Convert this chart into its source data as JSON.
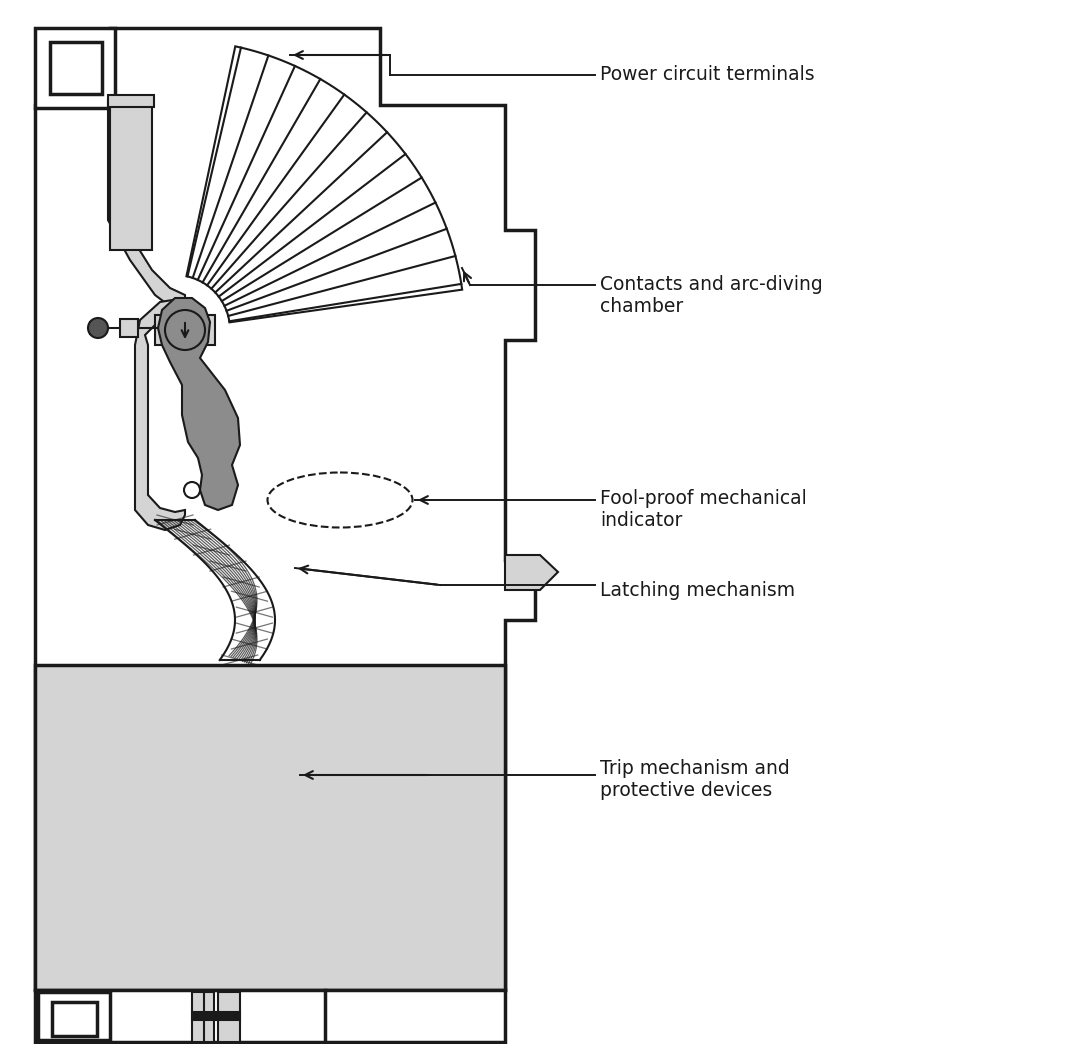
{
  "background_color": "#ffffff",
  "line_color": "#1a1a1a",
  "light_gray": "#d4d4d4",
  "mid_gray": "#8c8c8c",
  "dark_gray": "#555555",
  "labels": {
    "power_circuit": "Power circuit terminals",
    "contacts_arc": "Contacts and arc-diving\nchamber",
    "foolproof": "Fool-proof mechanical\nindicator",
    "latching": "Latching mechanism",
    "trip": "Trip mechanism and\nprotective devices"
  },
  "fontsize": 13.5
}
